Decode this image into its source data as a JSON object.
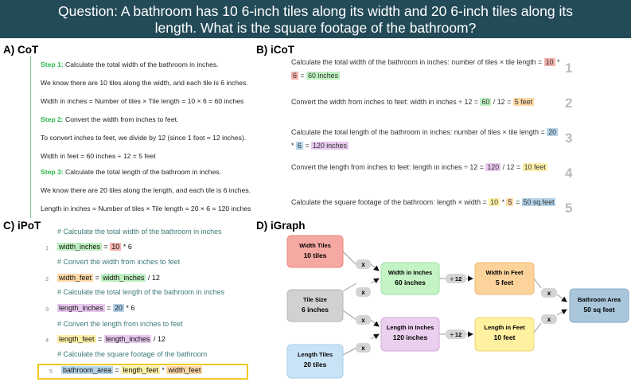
{
  "question": {
    "line1": "Question: A bathroom has 10 6-inch tiles along its width and 20 6-inch tiles along its",
    "line2": "length. What is the square footage of the bathroom?"
  },
  "sections": {
    "cot": "A) CoT",
    "icot": "B) iCoT",
    "ipot": "C) iPoT",
    "igraph": "D) iGraph"
  },
  "cot": {
    "steps": [
      {
        "label": "Step 1:",
        "lines": [
          "Calculate the total width of the bathroom in inches.",
          "We know there are 10 tiles along the width, and each tile is 6 inches.",
          "Width in inches = Number of tiles × Tile length = 10 × 6 = 60 inches"
        ]
      },
      {
        "label": "Step 2:",
        "lines": [
          "Convert the width from inches to feet.",
          "To convert inches to feet, we divide by 12 (since 1 foot = 12 inches).",
          "Width in feet = 60 inches ÷ 12 = 5 feet"
        ]
      },
      {
        "label": "Step 3:",
        "lines": [
          "Calculate the total length of the bathroom in inches.",
          "We know there are 20 tiles along the length, and each tile is 6 inches.",
          "Length in inches = Number of tiles × Tile length = 20 × 6 = 120 inches"
        ]
      }
    ]
  },
  "icot": {
    "rows": [
      {
        "num": "1",
        "text": "Calculate the total width of the bathroom in inches: number of tiles × tile length = ",
        "a": "10",
        "op": " * ",
        "b": "6",
        "eq": " = ",
        "r": "60 inches"
      },
      {
        "num": "2",
        "text": "Convert the width from inches to feet: width in inches ÷ 12 = ",
        "a": "60",
        "op": " / 12 = ",
        "r": "5 feet"
      },
      {
        "num": "3",
        "text": "Calculate the total length of the bathroom in inches: number of tiles × tile length = ",
        "a": "20",
        "op": " * ",
        "b": "6",
        "eq": " = ",
        "r": "120 inches"
      },
      {
        "num": "4",
        "text": "Convert the length from inches to feet: length in inches ÷ 12 = ",
        "a": "120",
        "op": " / 12 = ",
        "r": "10 feet"
      },
      {
        "num": "5",
        "text": "Calculate the square footage of the bathroom: length × width = ",
        "a": "10",
        "op": " * ",
        "b": "5",
        "eq": " = ",
        "r": "50 sq feet"
      }
    ]
  },
  "ipot": {
    "lines": [
      {
        "comment": "# Calculate the total width of the bathroom in inches"
      },
      {
        "num": "1",
        "v": "width_inches",
        "eq": " = ",
        "a": "10",
        "rest": " * 6"
      },
      {
        "comment": "# Convert the width from inches to feet"
      },
      {
        "num": "2",
        "v": "width_feet",
        "eq": " = ",
        "a": "width_inches",
        "rest": " / 12"
      },
      {
        "comment": "# Calculate the total length of the bathroom in inches"
      },
      {
        "num": "3",
        "v": "length_inches",
        "eq": " = ",
        "a": "20",
        "rest": " * 6"
      },
      {
        "comment": "# Convert the length from inches to feet"
      },
      {
        "num": "4",
        "v": "length_feet",
        "eq": " = ",
        "a": "length_inches",
        "rest": " / 12"
      },
      {
        "comment": "# Calculate the square footage of the bathroom"
      },
      {
        "num": "5",
        "v": "bathroom_area",
        "eq": " = ",
        "a": "length_feet",
        "op": " * ",
        "b": "width_feet"
      }
    ]
  },
  "igraph": {
    "nodes": {
      "width_tiles": {
        "title": "Width Tiles",
        "value": "10 tiles",
        "color": "#f6a9a2",
        "border": "#e7877f"
      },
      "tile_size": {
        "title": "Tile Size",
        "value": "6 inches",
        "color": "#d1d1d1",
        "border": "#b8b8b8"
      },
      "length_tiles": {
        "title": "Length Tiles",
        "value": "20 tiles",
        "color": "#c9e3f6",
        "border": "#a9cde9"
      },
      "width_inches": {
        "title": "Width in Inches",
        "value": "60 inches",
        "color": "#c4f3c5",
        "border": "#9fe0a2"
      },
      "length_inches": {
        "title": "Length in Inches",
        "value": "120 inches",
        "color": "#ebcfee",
        "border": "#d3a8d8"
      },
      "width_feet": {
        "title": "Width in Feet",
        "value": "5 feet",
        "color": "#fdd39c",
        "border": "#f0b870"
      },
      "length_feet": {
        "title": "Length in Feet",
        "value": "10 feet",
        "color": "#fff1a0",
        "border": "#ecd870"
      },
      "bathroom_area": {
        "title": "Bathroom Area",
        "value": "50 sq feet",
        "color": "#a9c6db",
        "border": "#86a9c4"
      }
    },
    "op_mul": "x",
    "op_div": "÷ 12"
  }
}
